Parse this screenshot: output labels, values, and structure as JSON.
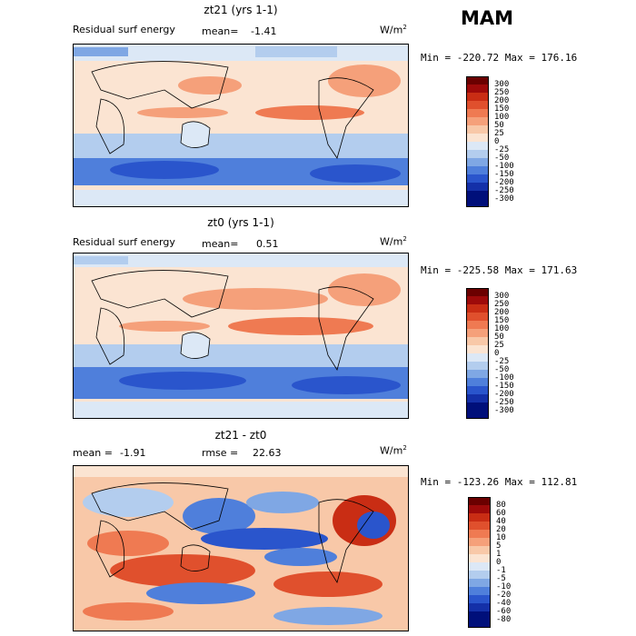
{
  "season": "MAM",
  "panels": [
    {
      "title": "zt21 (yrs 1-1)",
      "left_label": "Residual surf energy",
      "stat_label": "mean=",
      "stat_value": "-1.41",
      "units": "W/m",
      "units_sup": "2",
      "min_label": "Min =",
      "min_value": "-220.72",
      "max_label": "Max =",
      "max_value": "176.16",
      "colorbar": [
        "300",
        "250",
        "200",
        "150",
        "100",
        "50",
        "25",
        "0",
        "-25",
        "-50",
        "-100",
        "-150",
        "-200",
        "-250",
        "-300"
      ]
    },
    {
      "title": "zt0 (yrs 1-1)",
      "left_label": "Residual surf energy",
      "stat_label": "mean=",
      "stat_value": "0.51",
      "units": "W/m",
      "units_sup": "2",
      "min_label": "Min =",
      "min_value": "-225.58",
      "max_label": "Max =",
      "max_value": "171.63",
      "colorbar": [
        "300",
        "250",
        "200",
        "150",
        "100",
        "50",
        "25",
        "0",
        "-25",
        "-50",
        "-100",
        "-150",
        "-200",
        "-250",
        "-300"
      ]
    },
    {
      "title": "zt21 - zt0",
      "left_label": "mean =",
      "left_value": "-1.91",
      "stat_label": "rmse =",
      "stat_value": "22.63",
      "units": "W/m",
      "units_sup": "2",
      "min_label": "Min =",
      "min_value": "-123.26",
      "max_label": "Max =",
      "max_value": "112.81",
      "colorbar": [
        "80",
        "60",
        "40",
        "20",
        "10",
        "5",
        "1",
        "0",
        "-1",
        "-5",
        "-10",
        "-20",
        "-40",
        "-60",
        "-80"
      ]
    }
  ],
  "chart_data": [
    {
      "type": "heatmap",
      "title": "zt21 (yrs 1-1)",
      "variable": "Residual surf energy",
      "units": "W/m2",
      "mean": -1.41,
      "min": -220.72,
      "max": 176.16,
      "contour_levels": [
        300,
        250,
        200,
        150,
        100,
        50,
        25,
        0,
        -25,
        -50,
        -100,
        -150,
        -200,
        -250,
        -300
      ]
    },
    {
      "type": "heatmap",
      "title": "zt0 (yrs 1-1)",
      "variable": "Residual surf energy",
      "units": "W/m2",
      "mean": 0.51,
      "min": -225.58,
      "max": 171.63,
      "contour_levels": [
        300,
        250,
        200,
        150,
        100,
        50,
        25,
        0,
        -25,
        -50,
        -100,
        -150,
        -200,
        -250,
        -300
      ]
    },
    {
      "type": "heatmap",
      "title": "zt21 - zt0",
      "units": "W/m2",
      "mean": -1.91,
      "rmse": 22.63,
      "min": -123.26,
      "max": 112.81,
      "contour_levels": [
        80,
        60,
        40,
        20,
        10,
        5,
        1,
        0,
        -1,
        -5,
        -10,
        -20,
        -40,
        -60,
        -80
      ]
    }
  ],
  "colors": [
    "#6b0000",
    "#9e0a0a",
    "#c92d14",
    "#e0502d",
    "#ef7a52",
    "#f5a07a",
    "#f8c8a8",
    "#fbe4d2",
    "#dce8f6",
    "#b3cdee",
    "#7fa7e4",
    "#4f7fdb",
    "#2a55cc",
    "#1430a8",
    "#000f7a"
  ]
}
